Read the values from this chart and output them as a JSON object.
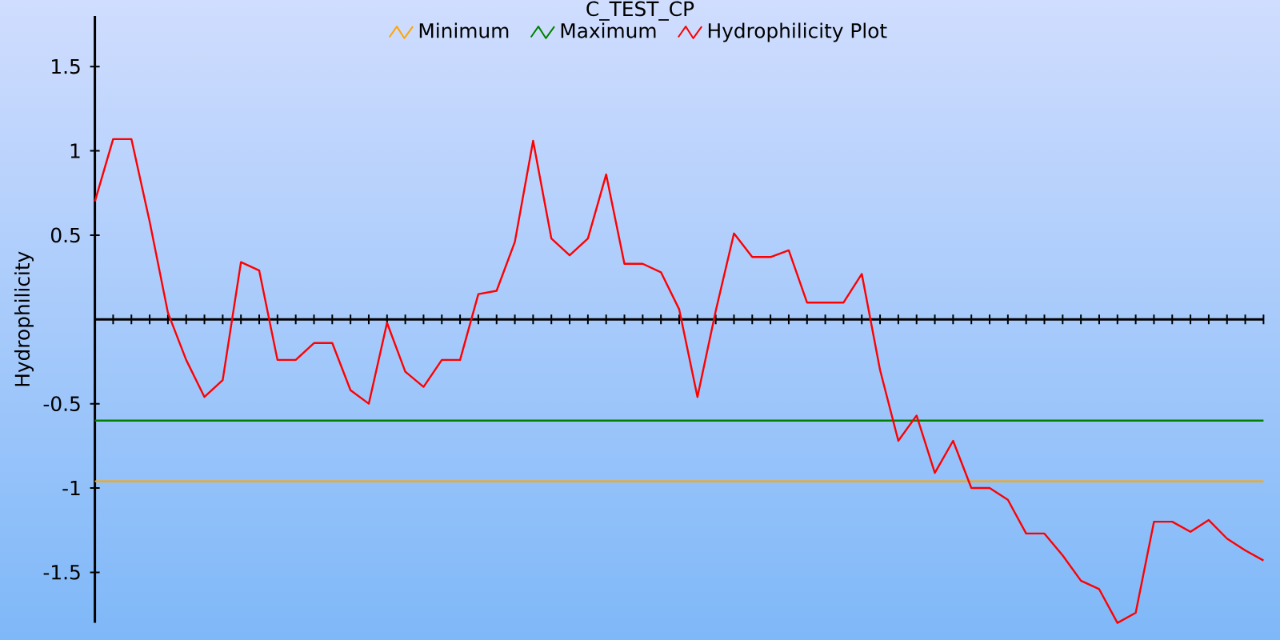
{
  "chart_data": {
    "type": "line",
    "title": "C_TEST_CP",
    "ylabel": "Hydrophilicity",
    "categories": [
      null,
      null,
      null,
      null,
      null,
      null,
      null,
      null,
      null,
      null,
      null,
      null,
      null,
      null,
      null,
      null,
      null,
      null,
      null,
      null,
      null,
      null,
      null,
      null,
      null,
      null,
      null,
      null,
      null,
      null,
      null,
      null,
      null,
      null,
      null,
      null,
      null,
      null,
      null,
      null,
      null,
      null,
      null,
      null,
      null,
      null,
      null,
      null,
      null,
      null,
      null,
      null,
      null,
      null,
      null,
      null,
      null,
      null,
      null,
      null,
      null,
      null,
      null,
      null,
      null
    ],
    "series": [
      {
        "name": "Minimum",
        "color": "#ffa500",
        "values": [
          -0.96,
          -0.96,
          -0.96,
          -0.96,
          -0.96,
          -0.96,
          -0.96,
          -0.96,
          -0.96,
          -0.96,
          -0.96,
          -0.96,
          -0.96,
          -0.96,
          -0.96,
          -0.96,
          -0.96,
          -0.96,
          -0.96,
          -0.96,
          -0.96,
          -0.96,
          -0.96,
          -0.96,
          -0.96,
          -0.96,
          -0.96,
          -0.96,
          -0.96,
          -0.96,
          -0.96,
          -0.96,
          -0.96,
          -0.96,
          -0.96,
          -0.96,
          -0.96,
          -0.96,
          -0.96,
          -0.96,
          -0.96,
          -0.96,
          -0.96,
          -0.96,
          -0.96,
          -0.96,
          -0.96,
          -0.96,
          -0.96,
          -0.96,
          -0.96,
          -0.96,
          -0.96,
          -0.96,
          -0.96,
          -0.96,
          -0.96,
          -0.96,
          -0.96,
          -0.96,
          -0.96,
          -0.96,
          -0.96,
          -0.96,
          -0.96
        ]
      },
      {
        "name": "Maximum",
        "color": "#008000",
        "values": [
          -0.6,
          -0.6,
          -0.6,
          -0.6,
          -0.6,
          -0.6,
          -0.6,
          -0.6,
          -0.6,
          -0.6,
          -0.6,
          -0.6,
          -0.6,
          -0.6,
          -0.6,
          -0.6,
          -0.6,
          -0.6,
          -0.6,
          -0.6,
          -0.6,
          -0.6,
          -0.6,
          -0.6,
          -0.6,
          -0.6,
          -0.6,
          -0.6,
          -0.6,
          -0.6,
          -0.6,
          -0.6,
          -0.6,
          -0.6,
          -0.6,
          -0.6,
          -0.6,
          -0.6,
          -0.6,
          -0.6,
          -0.6,
          -0.6,
          -0.6,
          -0.6,
          -0.6,
          -0.6,
          -0.6,
          -0.6,
          -0.6,
          -0.6,
          -0.6,
          -0.6,
          -0.6,
          -0.6,
          -0.6,
          -0.6,
          -0.6,
          -0.6,
          -0.6,
          -0.6,
          -0.6,
          -0.6,
          -0.6,
          -0.6,
          -0.6
        ]
      },
      {
        "name": "Hydrophilicity Plot",
        "color": "#ff0000",
        "values": [
          0.7,
          1.07,
          1.07,
          0.58,
          0.04,
          -0.24,
          -0.46,
          -0.36,
          0.34,
          0.29,
          -0.24,
          -0.24,
          -0.14,
          -0.14,
          -0.42,
          -0.5,
          -0.02,
          -0.31,
          -0.4,
          -0.24,
          -0.24,
          0.15,
          0.17,
          0.46,
          1.06,
          0.48,
          0.38,
          0.48,
          0.86,
          0.33,
          0.33,
          0.28,
          0.06,
          -0.46,
          0.05,
          0.51,
          0.37,
          0.37,
          0.41,
          0.1,
          0.1,
          0.1,
          0.27,
          -0.3,
          -0.72,
          -0.57,
          -0.91,
          -0.72,
          -1.0,
          -1.0,
          -1.07,
          -1.27,
          -1.27,
          -1.4,
          -1.55,
          -1.6,
          -1.8,
          -1.74,
          -1.2,
          -1.2,
          -1.26,
          -1.19,
          -1.3,
          -1.37,
          -1.43
        ]
      }
    ],
    "ylim": [
      -1.8,
      1.8
    ],
    "yticks": [
      -1.5,
      -1,
      -0.5,
      0.5,
      1,
      1.5
    ],
    "tick_labels": "y",
    "legend": "top",
    "marker": "none"
  }
}
